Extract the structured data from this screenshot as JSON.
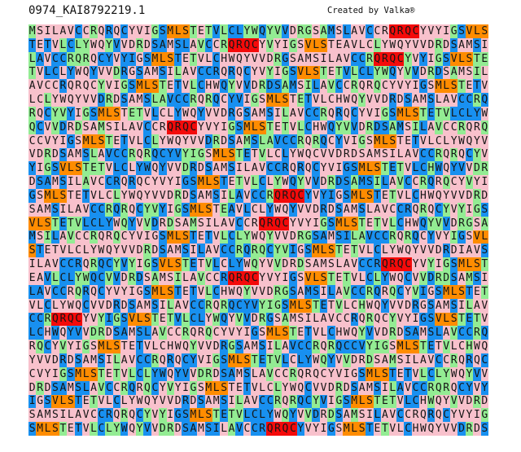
{
  "header": {
    "title": "0974_KAI8792219.1",
    "credit": "Created by Valka®"
  },
  "colors": {
    "pink": "#f8c1cc",
    "green": "#93ec93",
    "blue": "#1890f0",
    "orange": "#ff8c00",
    "red": "#f40a0a",
    "text": "#151515"
  },
  "motifs": {
    "orange": [
      "MLS",
      "VLS"
    ],
    "red": "QRQC"
  },
  "red_highlights": [
    [
      1,
      47
    ],
    [
      2,
      26
    ],
    [
      3,
      45
    ],
    [
      8,
      18
    ],
    [
      13,
      32
    ],
    [
      15,
      30
    ],
    [
      18,
      46
    ],
    [
      19,
      26
    ],
    [
      22,
      3
    ],
    [
      30,
      31
    ]
  ],
  "sequence_rows": [
    "MSILAVCCRQRQCYVIGSMLSTETVLCLYWQYVVDRGSAMSLAVCCRQRQCYVYIGSVLS",
    "TETVLCLYWQYVVDRDSAMSLAVCCRQRQCYVYIGSVLSTEAVLCLYWQYVVDRDSAMSI",
    "LAVCCRQRQCYVYIGSMLSTETVLCHWQYVVDRGSAMSILAVCCRQRQCYVYIGSVLSTE",
    "TVLCLYWQYVVDRGSAMSILAVCCRQRQCYVYIGSVLSTETVLCLYWQYVVDRDSAMSIL",
    "AVCCRQRQCYVIGSMLSTETVLCHWQYVVDRDSAMSILAVCCRQRQCYVYIGSMLSTETV",
    "LCLYWQYVVDRDSAMSLAVCCRQRQCYVIGSMLSTETVLCHWQYVVDRDSAMSLAVCCRQ",
    "RQCYVYIGSMLSTETVLCLYWQYVVDRGSAMSILAVCCRQRQCYVIGSMLSTETVLCLYW",
    "QCVVDRDSAMSILAVCCRQRQCYVYIGSMLSTETVLCHWQYVVDRDSAMSILAVCCRQRQ",
    "CCVYIGSMLSTETVLCLYWQYVVDRDSAMSLAVCCRQRQCYVIGSMLSTETVLCLYWQYV",
    "VDRDSAMSLAVCCRQRQCYVYIGSMLSTETVLCLYWQCVVDRDSAMSILAVCCRQRQCYV",
    "YIGSVLSTETVLCLYWQYVVDRDSAMSILAVCCRQRQCYVIGSMLSTETVLCHWQYVVDR",
    "DSAMSILAVCCRQRQCYVYIGSMLSTETVLCLYWQYVVDRDSAMSILAVCCRQRQCYVYI",
    "GSMLSTETVLCLYWQYVVDRDSAMSILAVCCRQRQCYVYIGSMLSTETVLCHWQYVVDRD",
    "SAMSILAVCCRQRQCYVYIGSMLSTEAVLCLYWQYVVDRDSAMSLAVCCRQRQCYVYIGS",
    "VLSTETVLCLYWQYVVDRDSAMSILAVCCRQRQCYVYIGSMLSTETVLCHWQYVVDRGSA",
    "MSILAVCCRQRQCYVIGSMLSTETVLCLYWQYVVDRGSAMSILAVCCRQRQCYVYIGSVL",
    "STETVLCLYWQYVVDRDSAMSILAVCCRQRQCYVIGSMLSTETVLCLYWQYVVDRDIAVS",
    "ILAVCCRQRQCYVYIGSVLSTETVLCLYWQYVVDRDSAMSLAVCCRQRQCYVYIGSMLST",
    "EAVLCLYWQCVVDRDSAMSILAVCCRQRQCYVYIGSVLSTETVLCLYWQCVVDRDSAMSI",
    "LAVCCRQRQCYVYIGSMLSTETVLCHWQYVVDRGSAMSILAVCCRQRQCYVIGSMLSTET",
    "VLCLYWQCVVDRDSAMSILAVCCRQRQCYVYIGSMLSTETVLCHWQYVVDRGSAMSILAV",
    "CCRQRQCYVYIGSVLSTETVLCLYWQYVVDRGSAMSILAVCCRQRQCYVYIGSVLSTETV",
    "LCHWQYVVDRDSAMSLAVCCRQRQCYVYIGSMLSTETVLCHWQYVVDRDSAMSLAVCCRQ",
    "RQCYVYIGSMLSTETVLCHWQYVVDRGSAMSILAVCCRQRQCCVYIGSMLSTETVLCHWQ",
    "YVVDRDSAMSILAVCCRQRQCYVIGSMLSTETVLCLYWQYVVDRDSAMSILAVCCRQRQC",
    "CVYIGSMLSTETVLCLYWQYVVDRDSAMSLAVCCRQRQCYVIGSMLSTETVLCLYWQYVV",
    "DRDSAMSLAVCCRQRQCYVYIGSMLSTETVLCLYWQCVVDRDSAMSILAVCCRQRQCYVY",
    "IGSVLSTETVLCLYWQYVVDRDSAMSILAVCCRQRQCYVIGSMLSTETVLCHWQYVVDRD",
    "SAMSILAVCCRQRQCYVYIGSMLSTETVLCLYWQYVVDRDSAMSILAVCCRQRQCYVYIG",
    "SMLSTETVLCLYWQYVVDRDSAMSILAVCCRQRQCYVYIGSMLSTETVLCHWQYVVDRDS"
  ]
}
